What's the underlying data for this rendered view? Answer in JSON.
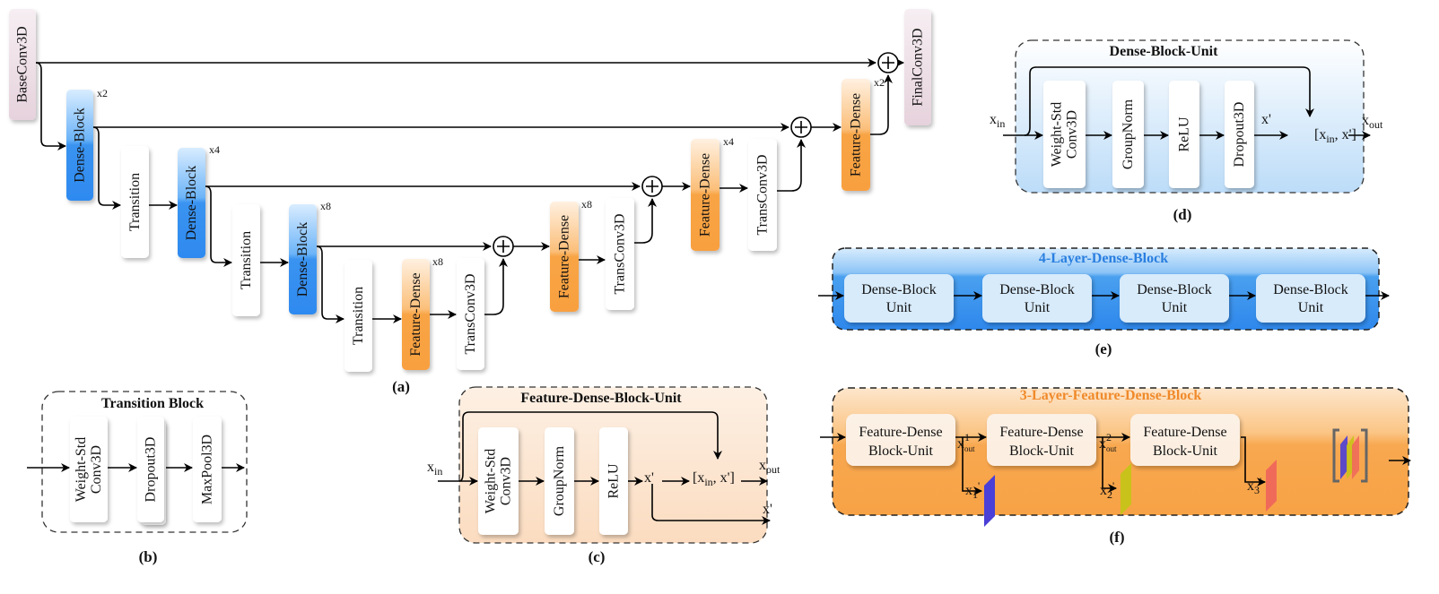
{
  "panel_a": {
    "caption": "(a)",
    "base_conv": "BaseConv3D",
    "final_conv": "FinalConv3D",
    "dense_block": "Dense-Block",
    "transition": "Transition",
    "feature_dense": "Feature-Dense",
    "trans_conv": "TransConv3D",
    "multipliers": [
      "x2",
      "x4",
      "x8",
      "x8",
      "x8",
      "x4",
      "x2"
    ]
  },
  "panel_b": {
    "caption": "(b)",
    "title": "Transition Block",
    "blocks": [
      "Weight-Std",
      "Conv3D",
      "Dropout3D",
      "MaxPool3D"
    ]
  },
  "panel_c": {
    "caption": "(c)",
    "title": "Feature-Dense-Block-Unit",
    "blocks": [
      "Weight-Std",
      "Conv3D",
      "GroupNorm",
      "ReLU"
    ],
    "x_in": "x",
    "x_in_sub": "in",
    "x_prime": "x'",
    "concat_open": "[x",
    "concat_sub": "in",
    "concat_close": ", x']",
    "x_out": "x",
    "x_out_sub": "out"
  },
  "panel_d": {
    "caption": "(d)",
    "title": "Dense-Block-Unit",
    "blocks": [
      "Weight-Std",
      "Conv3D",
      "GroupNorm",
      "ReLU",
      "Dropout3D"
    ],
    "x_in": "x",
    "x_in_sub": "in",
    "x_prime": "x'",
    "concat_open": "[x",
    "concat_sub": "in",
    "concat_close": ", x']",
    "x_out": "x",
    "x_out_sub": "out"
  },
  "panel_e": {
    "caption": "(e)",
    "title": "4-Layer-Dense-Block",
    "units": [
      {
        "line1": "Dense-Block",
        "line2": "Unit"
      },
      {
        "line1": "Dense-Block",
        "line2": "Unit"
      },
      {
        "line1": "Dense-Block",
        "line2": "Unit"
      },
      {
        "line1": "Dense-Block",
        "line2": "Unit"
      }
    ]
  },
  "panel_f": {
    "caption": "(f)",
    "title": "3-Layer-Feature-Dense-Block",
    "units": [
      {
        "line1": "Feature-Dense",
        "line2": "Block-Unit"
      },
      {
        "line1": "Feature-Dense",
        "line2": "Block-Unit"
      },
      {
        "line1": "Feature-Dense",
        "line2": "Block-Unit"
      }
    ],
    "outs": [
      {
        "base": "x",
        "sup": "1",
        "sub": "out"
      },
      {
        "base": "x",
        "sup": "2",
        "sub": "out"
      }
    ],
    "features": [
      {
        "base": "x",
        "sub": "1",
        "mark": "'"
      },
      {
        "base": "x",
        "sub": "2",
        "mark": "'"
      },
      {
        "base": "x",
        "sub": "3",
        "mark": "'"
      }
    ]
  },
  "colors": {
    "dense_block": "#3a93f0",
    "feature_dense": "#f8a445",
    "base_conv": "#ead6df",
    "feature_x1": "#4a3fd6",
    "feature_x2": "#c8c21a",
    "feature_x3": "#f06a5a",
    "title_e": "#2a7fe0",
    "title_f": "#f08a2a"
  }
}
